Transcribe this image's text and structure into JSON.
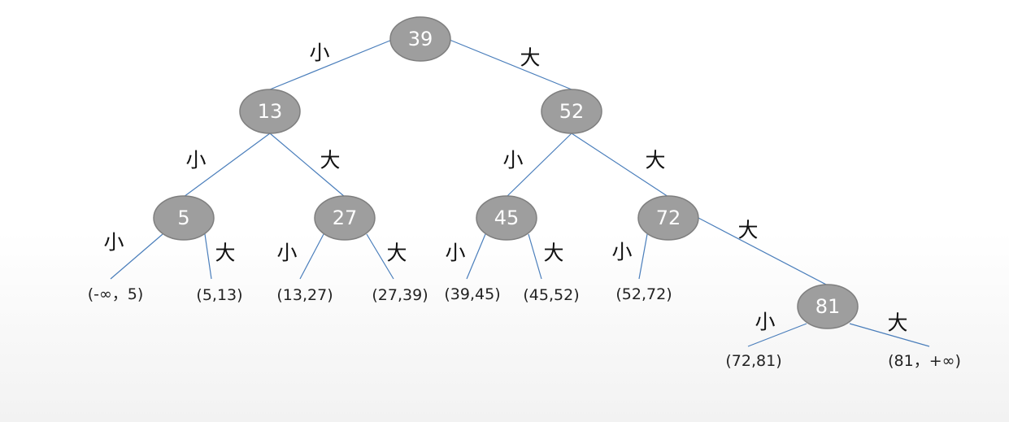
{
  "tree": {
    "nodes": {
      "n39": "39",
      "n13": "13",
      "n52": "52",
      "n5": "5",
      "n27": "27",
      "n45": "45",
      "n72": "72",
      "n81": "81"
    },
    "edge_labels": {
      "small": "小",
      "large": "大"
    },
    "intervals": {
      "i1": "(-∞，5)",
      "i2": "(5,13)",
      "i3": "(13,27)",
      "i4": "(27,39)",
      "i5": "(39,45)",
      "i6": "(45,52)",
      "i7": "(52,72)",
      "i8": "(72,81)",
      "i9": "(81，+∞)"
    },
    "colors": {
      "node_fill": "#9e9e9e",
      "node_stroke": "#7f7f7f",
      "edge": "#4a7ebb"
    }
  }
}
